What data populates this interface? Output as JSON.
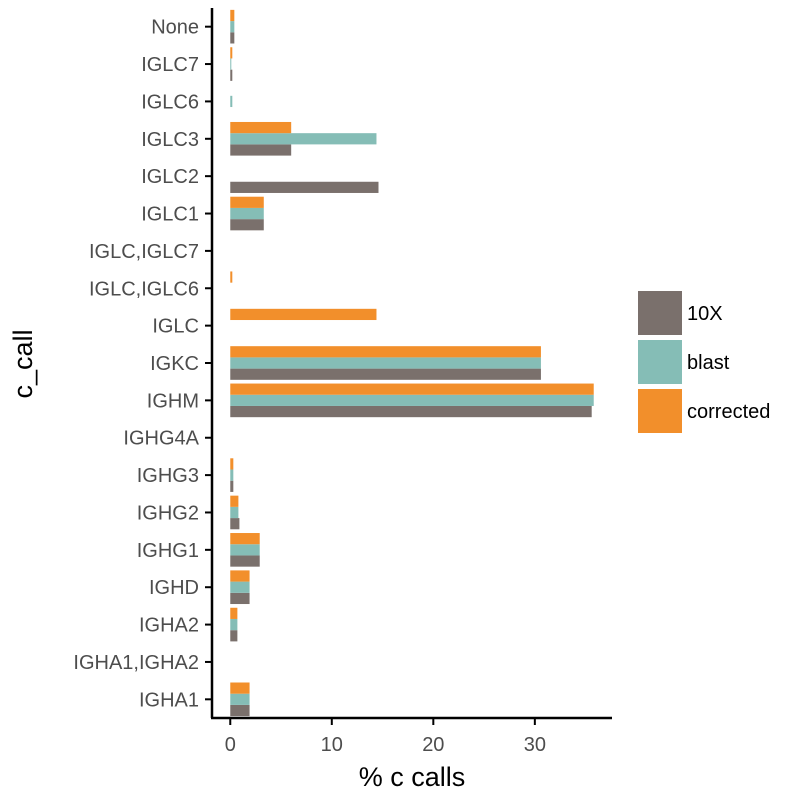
{
  "chart_data": {
    "type": "bar",
    "orientation": "horizontal",
    "xlabel": "% c calls",
    "ylabel": "c_call",
    "xlim": [
      -1.8,
      37.6
    ],
    "xticks": [
      0,
      10,
      20,
      30
    ],
    "grid": false,
    "legend_position": "right",
    "categories": [
      "IGHA1",
      "IGHA1,IGHA2",
      "IGHA2",
      "IGHD",
      "IGHG1",
      "IGHG2",
      "IGHG3",
      "IGHG4A",
      "IGHM",
      "IGKC",
      "IGLC",
      "IGLC,IGLC6",
      "IGLC,IGLC7",
      "IGLC1",
      "IGLC2",
      "IGLC3",
      "IGLC6",
      "IGLC7",
      "None"
    ],
    "series": [
      {
        "name": "10X",
        "color": "#7a706c",
        "values": [
          1.9,
          0,
          0.7,
          1.9,
          2.9,
          0.9,
          0.3,
          0,
          35.6,
          30.6,
          0,
          0,
          0,
          3.3,
          14.6,
          6.0,
          0,
          0.2,
          0.4
        ]
      },
      {
        "name": "blast",
        "color": "#85bdb6",
        "values": [
          1.9,
          0,
          0.7,
          1.9,
          2.9,
          0.8,
          0.3,
          0,
          35.8,
          30.6,
          0,
          0,
          0,
          3.3,
          0,
          14.4,
          0.2,
          0.1,
          0.4
        ]
      },
      {
        "name": "corrected",
        "color": "#f28f2b",
        "values": [
          1.9,
          0,
          0.7,
          1.9,
          2.9,
          0.8,
          0.3,
          0,
          35.8,
          30.6,
          14.4,
          0.2,
          0,
          3.3,
          0,
          6.0,
          0,
          0.2,
          0.4
        ]
      }
    ]
  }
}
